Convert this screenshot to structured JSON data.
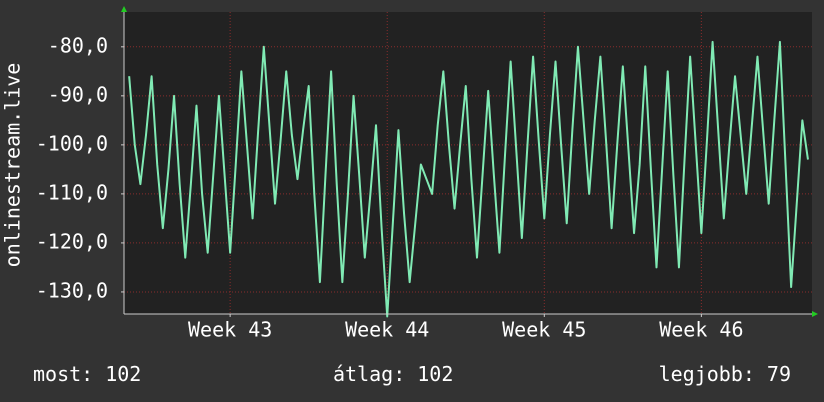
{
  "chart_data": {
    "type": "line",
    "y_label": "onlinestream.live",
    "x": [
      -4.5,
      -4.25,
      -4,
      -3.75,
      -3.5,
      -3.25,
      -3,
      -2.75,
      -2.5,
      -2.25,
      -2,
      -1.75,
      -1.5,
      -1.25,
      -1,
      -0.75,
      -0.5,
      -0.25,
      0,
      0.25,
      0.5,
      0.75,
      1,
      1.25,
      1.5,
      1.75,
      2,
      2.25,
      2.5,
      2.75,
      3,
      3.25,
      3.5,
      3.75,
      4,
      4.25,
      4.5,
      4.75,
      5,
      5.25,
      5.5,
      5.75,
      6,
      6.25,
      6.5,
      6.75,
      7,
      7.25,
      7.5,
      7.75,
      8,
      8.25,
      8.5,
      8.75,
      9,
      9.25,
      9.5,
      9.75,
      10,
      10.25,
      10.5,
      10.75,
      11,
      11.25,
      11.5,
      11.75,
      12,
      12.25,
      12.5,
      12.75,
      13,
      13.25,
      13.5,
      13.75,
      14,
      14.25,
      14.5,
      14.75,
      15,
      15.25,
      15.5,
      15.75,
      16,
      16.25,
      16.5,
      16.75,
      17,
      17.25,
      17.5,
      17.75,
      18,
      18.25,
      18.5,
      18.75,
      19,
      19.25,
      19.5,
      19.75,
      20,
      20.25,
      20.5,
      20.75,
      21,
      21.25,
      21.5,
      21.75,
      22,
      22.25,
      22.5,
      22.75,
      23,
      23.25,
      23.5,
      23.75,
      24,
      24.25,
      24.5,
      24.75,
      25,
      25.25,
      25.5,
      25.75
    ],
    "series": [
      {
        "color": "#80eab4",
        "values": [
          -86,
          -100,
          -108,
          -98,
          -86,
          -104,
          -117,
          -105,
          -90,
          -108,
          -123,
          -108,
          -92,
          -110,
          -122,
          -106,
          -90,
          -106,
          -122,
          -104,
          -85,
          -100,
          -115,
          -97,
          -80,
          -96,
          -112,
          -99,
          -85,
          -98,
          -107,
          -97,
          -88,
          -110,
          -128,
          -106,
          -85,
          -108,
          -128,
          -110,
          -90,
          -106,
          -123,
          -110,
          -96,
          -117,
          -135,
          -116,
          -97,
          -114,
          -128,
          -116,
          -104,
          -107,
          -110,
          -96,
          -85,
          -100,
          -113,
          -100,
          -88,
          -107,
          -123,
          -106,
          -89,
          -106,
          -122,
          -102,
          -83,
          -101,
          -119,
          -100,
          -82,
          -99,
          -115,
          -98,
          -83,
          -100,
          -116,
          -97,
          -80,
          -95,
          -110,
          -95,
          -82,
          -99,
          -117,
          -100,
          -84,
          -101,
          -118,
          -104,
          -84,
          -105,
          -125,
          -105,
          -85,
          -106,
          -125,
          -103,
          -82,
          -100,
          -118,
          -99,
          -79,
          -97,
          -115,
          -100,
          -86,
          -98,
          -110,
          -96,
          -82,
          -97,
          -112,
          -95,
          -79,
          -104,
          -129,
          -112,
          -95,
          -103
        ]
      }
    ],
    "xlim": [
      -4.73,
      25.93
    ],
    "xticks": [
      {
        "value": 0,
        "label": "Week 43"
      },
      {
        "value": 7,
        "label": "Week 44"
      },
      {
        "value": 14,
        "label": "Week 45"
      },
      {
        "value": 21,
        "label": "Week 46"
      }
    ],
    "ylim": [
      -134.5,
      -72.9
    ],
    "yticks": [
      {
        "value": -130,
        "label": "-130,0"
      },
      {
        "value": -120,
        "label": "-120,0"
      },
      {
        "value": -110,
        "label": "-110,0"
      },
      {
        "value": -100,
        "label": "-100,0"
      },
      {
        "value": -90,
        "label": "-90,0"
      },
      {
        "value": -80,
        "label": "-80,0"
      }
    ],
    "grid": true,
    "stats": [
      {
        "label": "most:",
        "value": 102
      },
      {
        "label": "átlag:",
        "value": 102
      },
      {
        "label": "legjobb:",
        "value": 79
      }
    ]
  }
}
